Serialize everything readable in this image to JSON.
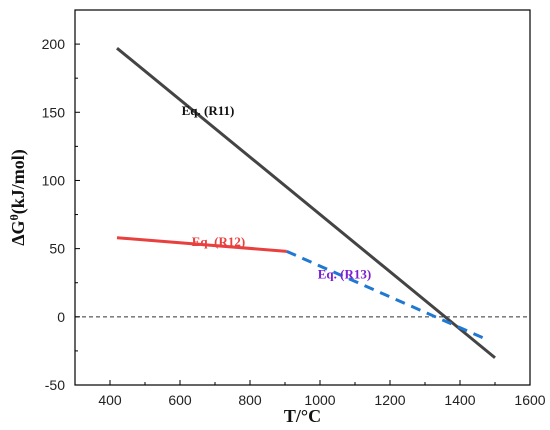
{
  "chart_data": {
    "type": "line",
    "title": "",
    "xlabel": "T/°C",
    "ylabel_main": "ΔG",
    "ylabel_sup": "θ",
    "ylabel_rest": "(kJ/mol)",
    "xlim": [
      300,
      1600
    ],
    "ylim": [
      -50,
      225
    ],
    "xticks": [
      400,
      600,
      800,
      1000,
      1200,
      1400,
      1600
    ],
    "yticks": [
      -50,
      0,
      50,
      100,
      150,
      200
    ],
    "grid": false,
    "series": [
      {
        "label": "Eq. (R11)",
        "color": "#444444",
        "dash": "solid",
        "points": [
          [
            420,
            197
          ],
          [
            1500,
            -30
          ]
        ]
      },
      {
        "label": "Eq. (R12)",
        "color": "#e8403f",
        "dash": "solid",
        "points": [
          [
            420,
            58
          ],
          [
            905,
            48
          ]
        ]
      },
      {
        "label": "Eq. (R13)",
        "color": "#1f78d1",
        "dash": "dashed",
        "points": [
          [
            905,
            48
          ],
          [
            1480,
            -17
          ]
        ]
      }
    ],
    "reference_line": {
      "y": 0,
      "x_range": [
        300,
        1600
      ],
      "dash": "dashed",
      "color": "#333333"
    },
    "annotations": [
      {
        "text": "Eq. (R11)",
        "x": 680,
        "y": 148,
        "color": "#111111"
      },
      {
        "text": "Eq. (R12)",
        "x": 710,
        "y": 52,
        "color": "#e8403f"
      },
      {
        "text": "Eq. (R13)",
        "x": 1070,
        "y": 28,
        "color": "#7a1fd1"
      }
    ]
  }
}
